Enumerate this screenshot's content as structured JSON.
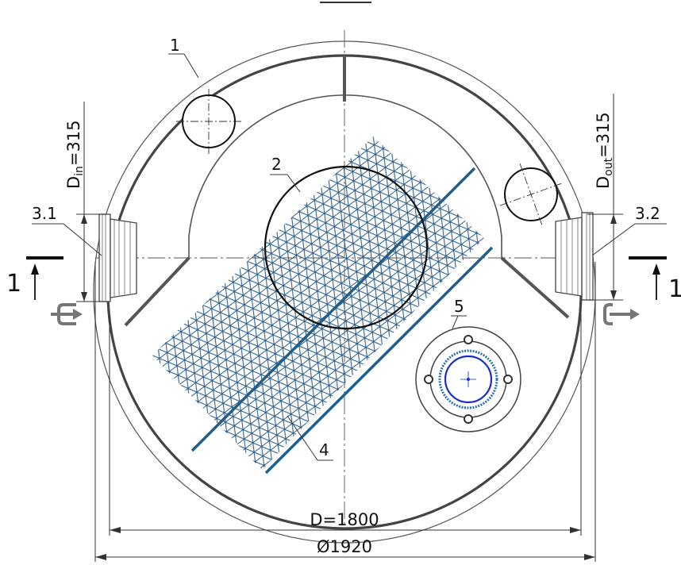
{
  "callouts": {
    "c1": "1",
    "c2": "2",
    "c3_1": "3.1",
    "c3_2": "3.2",
    "c4": "4",
    "c5": "5"
  },
  "section": {
    "left": "1",
    "right": "1"
  },
  "dimensions": {
    "inner_diameter": "D=1800",
    "outer_diameter": "Ø1920",
    "inlet_prefix": "D",
    "inlet_sub": "in",
    "inlet_value": "=315",
    "outlet_prefix": "D",
    "outlet_sub": "out",
    "outlet_value": "=315"
  },
  "colors": {
    "line": "#333333",
    "thin": "#555555",
    "mesh": "#2e5f8a",
    "baffle": "#1f5f8f",
    "riser": "#1a2fc8"
  },
  "icons": {
    "inlet": "inlet-arrow-icon",
    "outlet": "outlet-arrow-icon"
  }
}
